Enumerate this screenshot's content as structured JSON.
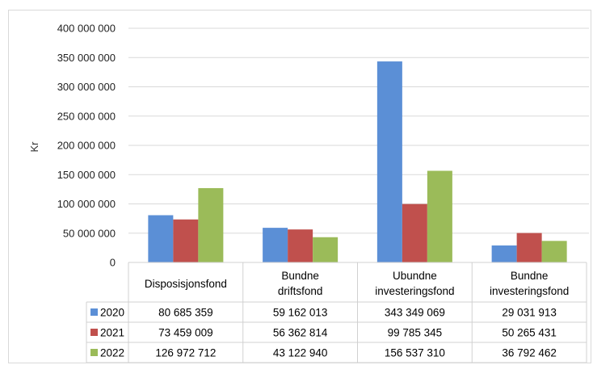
{
  "chart_data": {
    "type": "bar",
    "ylabel": "Kr",
    "ylim": [
      0,
      400000000
    ],
    "yticks": [
      0,
      50000000,
      100000000,
      150000000,
      200000000,
      250000000,
      300000000,
      350000000,
      400000000
    ],
    "ytick_labels": [
      "0",
      "50 000 000",
      "100 000 000",
      "150 000 000",
      "200 000 000",
      "250 000 000",
      "300 000 000",
      "350 000 000",
      "400 000 000"
    ],
    "grid": true,
    "legend": "data-table",
    "categories": [
      [
        "Disposisjonsfond"
      ],
      [
        "Bundne",
        "driftsfond"
      ],
      [
        "Ubundne",
        "investeringsfond"
      ],
      [
        "Bundne",
        "investeringsfond"
      ]
    ],
    "series": [
      {
        "name": "2020",
        "color": "#5b8fd6",
        "values": [
          80685359,
          59162013,
          343349069,
          29031913
        ],
        "labels": [
          "80 685 359",
          "59 162 013",
          "343 349 069",
          "29 031 913"
        ]
      },
      {
        "name": "2021",
        "color": "#c0504d",
        "values": [
          73459009,
          56362814,
          99785345,
          50265431
        ],
        "labels": [
          "73 459 009",
          "56 362 814",
          "99 785 345",
          "50 265 431"
        ]
      },
      {
        "name": "2022",
        "color": "#9bbb59",
        "values": [
          126972712,
          43122940,
          156537310,
          36792462
        ],
        "labels": [
          "126 972 712",
          "43 122 940",
          "156 537 310",
          "36 792 462"
        ]
      }
    ]
  }
}
